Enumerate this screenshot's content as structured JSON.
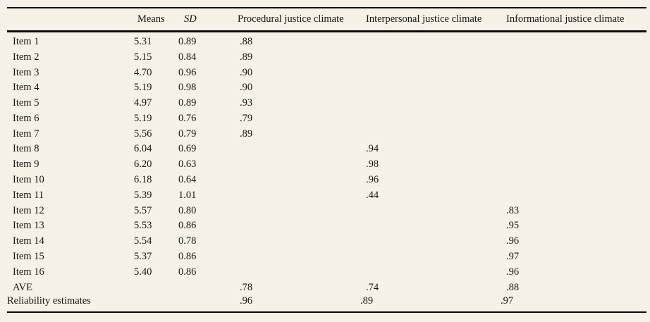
{
  "colors": {
    "background": "#f5f1e6",
    "text": "#161616",
    "rule": "#0a0a0a"
  },
  "table": {
    "header": {
      "label": "",
      "means": "Means",
      "sd": "SD",
      "procedural": "Procedural justice climate",
      "interpersonal": "Interpersonal justice climate",
      "informational": "Informational justice climate"
    },
    "rows": [
      {
        "label": "Item 1",
        "means": "5.31",
        "sd": "0.89",
        "procedural": ".88",
        "interpersonal": "",
        "informational": ""
      },
      {
        "label": "Item 2",
        "means": "5.15",
        "sd": "0.84",
        "procedural": ".89",
        "interpersonal": "",
        "informational": ""
      },
      {
        "label": "Item 3",
        "means": "4.70",
        "sd": "0.96",
        "procedural": ".90",
        "interpersonal": "",
        "informational": ""
      },
      {
        "label": "Item 4",
        "means": "5.19",
        "sd": "0.98",
        "procedural": ".90",
        "interpersonal": "",
        "informational": ""
      },
      {
        "label": "Item 5",
        "means": "4.97",
        "sd": "0.89",
        "procedural": ".93",
        "interpersonal": "",
        "informational": ""
      },
      {
        "label": "Item 6",
        "means": "5.19",
        "sd": "0.76",
        "procedural": ".79",
        "interpersonal": "",
        "informational": ""
      },
      {
        "label": "Item 7",
        "means": "5.56",
        "sd": "0.79",
        "procedural": ".89",
        "interpersonal": "",
        "informational": ""
      },
      {
        "label": "Item 8",
        "means": "6.04",
        "sd": "0.69",
        "procedural": "",
        "interpersonal": ".94",
        "informational": ""
      },
      {
        "label": "Item 9",
        "means": "6.20",
        "sd": "0.63",
        "procedural": "",
        "interpersonal": ".98",
        "informational": ""
      },
      {
        "label": "Item 10",
        "means": "6.18",
        "sd": "0.64",
        "procedural": "",
        "interpersonal": ".96",
        "informational": ""
      },
      {
        "label": "Item 11",
        "means": "5.39",
        "sd": "1.01",
        "procedural": "",
        "interpersonal": ".44",
        "informational": ""
      },
      {
        "label": "Item 12",
        "means": "5.57",
        "sd": "0.80",
        "procedural": "",
        "interpersonal": "",
        "informational": ".83"
      },
      {
        "label": "Item 13",
        "means": "5.53",
        "sd": "0.86",
        "procedural": "",
        "interpersonal": "",
        "informational": ".95"
      },
      {
        "label": "Item 14",
        "means": "5.54",
        "sd": "0.78",
        "procedural": "",
        "interpersonal": "",
        "informational": ".96"
      },
      {
        "label": "Item 15",
        "means": "5.37",
        "sd": "0.86",
        "procedural": "",
        "interpersonal": "",
        "informational": ".97"
      },
      {
        "label": "Item 16",
        "means": "5.40",
        "sd": "0.86",
        "procedural": "",
        "interpersonal": "",
        "informational": ".96"
      },
      {
        "label": "AVE",
        "means": "",
        "sd": "",
        "procedural": ".78",
        "interpersonal": ".74",
        "informational": ".88"
      },
      {
        "label": "Reliability estimates",
        "means": "",
        "sd": "",
        "procedural": ".96",
        "interpersonal": ".89",
        "informational": ".97"
      }
    ]
  }
}
